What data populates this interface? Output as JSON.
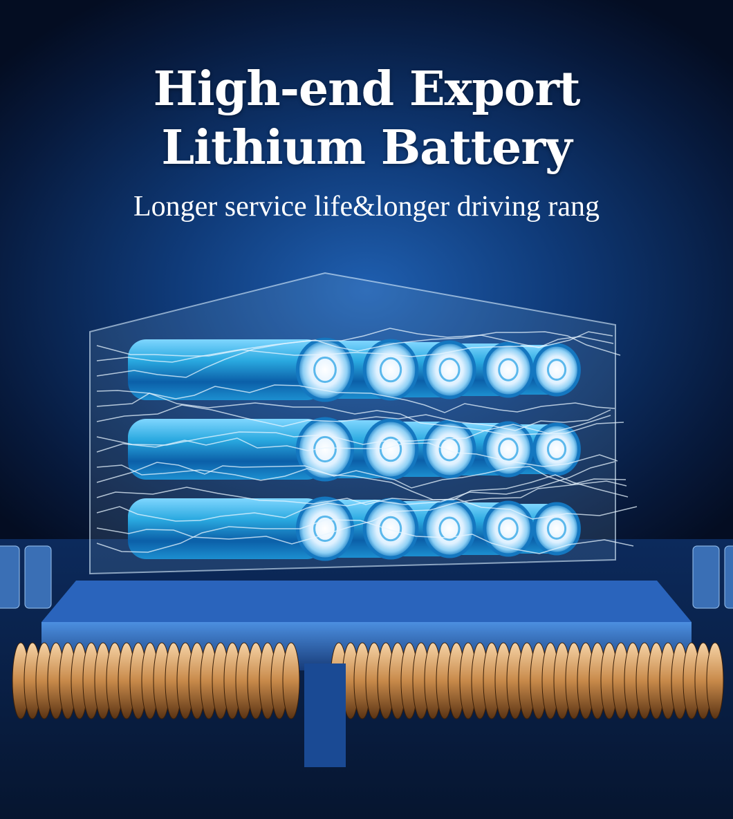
{
  "headline": {
    "line1": "High-end Export",
    "line2": "Lithium Battery"
  },
  "subtitle": "Longer service life&longer driving rang",
  "colors": {
    "background": "#0f3a78",
    "battery": "#2aa9e0",
    "battery_cap": "#e6f4ff",
    "copper": "#c88a4a",
    "text": "#ffffff"
  },
  "illustration": {
    "battery-icon": "cylindrical lithium cells, 3 rows of 5, inside transparent case on chip",
    "chip-icon": "processor base with copper coils"
  }
}
